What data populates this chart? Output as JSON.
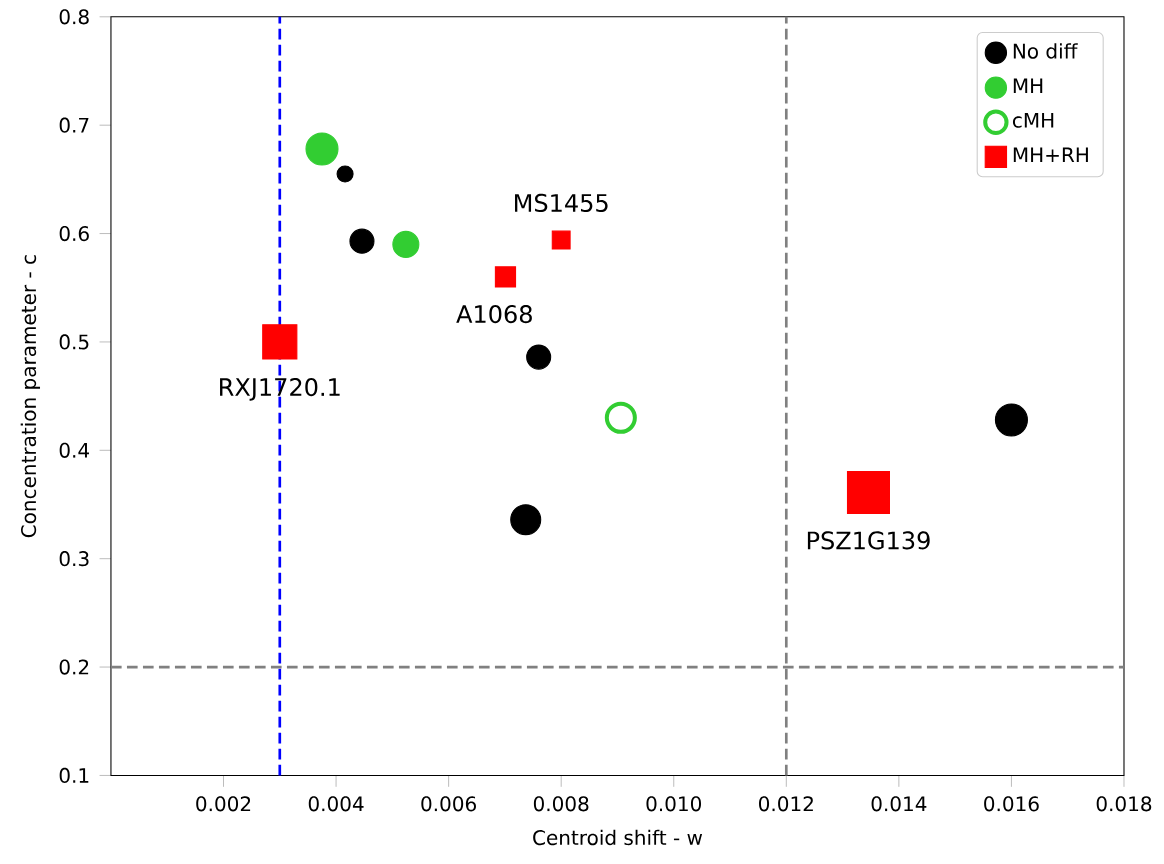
{
  "chart_data": {
    "type": "bubble",
    "xlabel": "Centroid shift - w",
    "ylabel": "Concentration parameter - c",
    "xlim": [
      0,
      0.018
    ],
    "ylim": [
      0.1,
      0.8
    ],
    "xticks": [
      0.002,
      0.004,
      0.006,
      0.008,
      {
        "value": 0.01,
        "label": "0.010"
      },
      0.012,
      0.014,
      0.016,
      0.018
    ],
    "yticks": [
      0.1,
      0.2,
      0.3,
      0.4,
      0.5,
      0.6,
      0.7,
      0.8
    ],
    "grid": false,
    "legend": "top right",
    "series": [
      {
        "name": "No diff",
        "color": "#000000",
        "marker": "circle",
        "x": [
          0.00416,
          0.00446,
          0.0076,
          0.00737,
          0.016
        ],
        "values": [
          0.655,
          0.593,
          0.486,
          0.336,
          0.428
        ],
        "sizes": [
          0.114,
          0.256,
          0.256,
          0.4,
          0.456
        ]
      },
      {
        "name": "MH",
        "color": "#32cd32",
        "marker": "circle",
        "x": [
          0.00375,
          0.00524
        ],
        "values": [
          0.678,
          0.59
        ],
        "sizes": [
          0.456,
          0.3
        ]
      },
      {
        "name": "cMH",
        "color": "#32cd32",
        "marker": "circle-open",
        "x": [
          0.00906
        ],
        "values": [
          0.43
        ],
        "sizes": [
          0.35
        ]
      },
      {
        "name": "MH+RH",
        "color": "#ff0000",
        "marker": "square",
        "x": [
          0.00701,
          0.008,
          0.003,
          0.01346
        ],
        "values": [
          0.56,
          0.594,
          0.5,
          0.361
        ],
        "sizes": [
          0.23,
          0.18,
          0.66,
          1
        ]
      }
    ],
    "ref_lines": [
      {
        "axis": "x",
        "value": 0.003,
        "color": "#0000ff",
        "line_style": "dashed"
      },
      {
        "axis": "x",
        "value": 0.012,
        "color": "#808080",
        "line_style": "dashed"
      },
      {
        "axis": "y",
        "value": 0.2,
        "color": "#808080",
        "line_style": "dashed"
      }
    ],
    "annotations": [
      {
        "text": "RXJ1720.1",
        "x": 0.003,
        "y": 0.5
      },
      {
        "text": "A1068",
        "x": 0.00701,
        "y": 0.56
      },
      {
        "text": "MS1455",
        "x": 0.008,
        "y": 0.594
      },
      {
        "text": "PSZ1G139",
        "x": 0.01346,
        "y": 0.361
      }
    ]
  }
}
